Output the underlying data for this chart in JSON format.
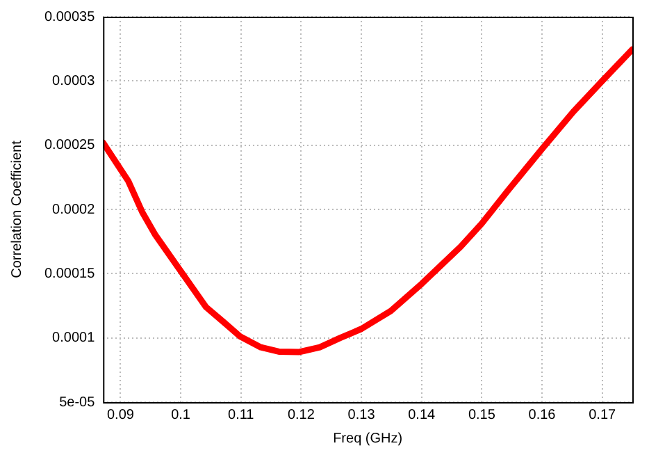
{
  "chart_data": {
    "type": "line",
    "xlabel": "Freq (GHz)",
    "ylabel": "Correlation Coefficient",
    "x": [
      0.0871,
      0.0913,
      0.0936,
      0.0958,
      0.1,
      0.1042,
      0.1072,
      0.1099,
      0.1133,
      0.1163,
      0.1197,
      0.1231,
      0.1265,
      0.13,
      0.1349,
      0.14,
      0.1465,
      0.15,
      0.1544,
      0.16,
      0.1652,
      0.17,
      0.175
    ],
    "series": [
      {
        "color": "#ff0000",
        "values": [
          0.000252,
          0.000222,
          0.000198,
          0.00018,
          0.000152,
          0.000124,
          0.000112,
          0.000101,
          9.27e-05,
          8.93e-05,
          8.9e-05,
          9.27e-05,
          0.0001,
          0.000107,
          0.000121,
          0.000142,
          0.000171,
          0.000189,
          0.000215,
          0.000247,
          0.000276,
          0.0003,
          0.0003245
        ]
      }
    ],
    "xlim": [
      0.0871,
      0.175
    ],
    "xticks": [
      0.09,
      0.1,
      0.11,
      0.12,
      0.13,
      0.14,
      0.15,
      0.16,
      0.17
    ],
    "ylim": [
      5e-05,
      0.00035
    ],
    "yticks": [
      {
        "value": 5e-05,
        "label": "5e-05"
      },
      0.0001,
      0.00015,
      0.0002,
      0.00025,
      0.0003,
      0.00035
    ],
    "grid": true,
    "legend": false,
    "marker": "none",
    "line_style": "solid"
  }
}
